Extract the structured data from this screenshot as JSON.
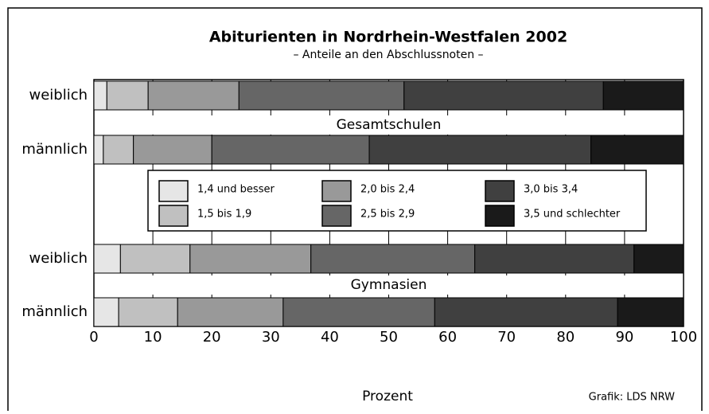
{
  "chart_data": {
    "type": "stacked_barh",
    "title": "Abiturienten in Nordrhein-Westfalen 2002",
    "subtitle": "– Anteile an den Abschlussnoten –",
    "categories": [
      "weiblich",
      "männlich",
      "weiblich",
      "männlich"
    ],
    "group_labels": [
      "Gesamtschulen",
      "Gymnasien"
    ],
    "series": [
      {
        "name": "1,4 und besser",
        "color": "#e6e6e6",
        "values": [
          2.2,
          1.6,
          4.5,
          4.2
        ]
      },
      {
        "name": "1,5 bis 1,9",
        "color": "#c0c0c0",
        "values": [
          7.0,
          5.1,
          11.8,
          10.0
        ]
      },
      {
        "name": "2,0 bis 2,4",
        "color": "#999999",
        "values": [
          15.4,
          13.3,
          20.5,
          17.9
        ]
      },
      {
        "name": "2,5 bis 2,9",
        "color": "#666666",
        "values": [
          28.0,
          26.7,
          27.8,
          25.7
        ]
      },
      {
        "name": "3,0 bis 3,4",
        "color": "#404040",
        "values": [
          33.8,
          37.6,
          27.0,
          31.0
        ]
      },
      {
        "name": "3,5 und schlechter",
        "color": "#1a1a1a",
        "values": [
          13.6,
          15.7,
          8.4,
          11.2
        ]
      }
    ],
    "xlim": [
      0,
      100
    ],
    "xticks": [
      0,
      10,
      20,
      30,
      40,
      50,
      60,
      70,
      80,
      90,
      100
    ],
    "xlabel": "Prozent",
    "source": "Grafik: LDS NRW",
    "grid": true
  }
}
